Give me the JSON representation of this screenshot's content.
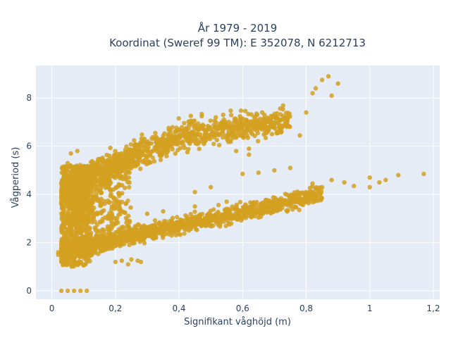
{
  "chart_data": {
    "type": "scatter",
    "title_lines": [
      "År 1979 - 2019",
      "Koordinat (Sweref 99 TM): E 352078, N 6212713"
    ],
    "xlabel": "Signifikant våghöjd (m)",
    "ylabel": "Vågperiod (s)",
    "xlim": [
      -0.05,
      1.22
    ],
    "ylim": [
      -0.35,
      9.35
    ],
    "x_ticks": [
      0,
      0.2,
      0.4,
      0.6,
      0.8,
      1,
      1.2
    ],
    "x_tick_labels": [
      "0",
      "0,2",
      "0,4",
      "0,6",
      "0,8",
      "1",
      "1,2"
    ],
    "y_ticks": [
      0,
      2,
      4,
      6,
      8
    ],
    "y_tick_labels": [
      "0",
      "2",
      "4",
      "6",
      "8"
    ],
    "grid": true,
    "legend": "none",
    "marker_color": "#d4a020",
    "plot_bg": "#e5ecf6",
    "sample_points": [
      [
        0.02,
        1.5
      ],
      [
        0.03,
        1.2
      ],
      [
        0.02,
        1.6
      ],
      [
        0.03,
        1.9
      ],
      [
        0.03,
        0.0
      ],
      [
        0.05,
        0.0
      ],
      [
        0.07,
        0.0
      ],
      [
        0.09,
        0.0
      ],
      [
        0.11,
        0.0
      ],
      [
        1.17,
        4.85
      ],
      [
        1.09,
        4.8
      ],
      [
        1.05,
        4.6
      ],
      [
        1.0,
        4.7
      ],
      [
        1.0,
        4.3
      ],
      [
        1.03,
        4.5
      ],
      [
        0.95,
        4.35
      ],
      [
        0.92,
        4.5
      ],
      [
        0.88,
        4.6
      ],
      [
        0.85,
        4.3
      ],
      [
        0.82,
        4.45
      ],
      [
        0.8,
        4.1
      ],
      [
        0.9,
        8.6
      ],
      [
        0.87,
        8.9
      ],
      [
        0.85,
        8.75
      ],
      [
        0.83,
        8.4
      ],
      [
        0.82,
        8.2
      ],
      [
        0.88,
        8.1
      ],
      [
        0.8,
        7.4
      ],
      [
        0.78,
        6.45
      ],
      [
        0.62,
        5.9
      ],
      [
        0.62,
        5.65
      ],
      [
        0.58,
        5.8
      ],
      [
        0.6,
        6.8
      ],
      [
        0.75,
        5.1
      ],
      [
        0.7,
        5.0
      ],
      [
        0.65,
        4.9
      ],
      [
        0.6,
        4.85
      ],
      [
        0.03,
        2.6
      ],
      [
        0.03,
        3.7
      ],
      [
        0.03,
        3.2
      ],
      [
        0.04,
        4.0
      ],
      [
        0.04,
        4.8
      ],
      [
        0.05,
        5.3
      ],
      [
        0.06,
        5.7
      ],
      [
        0.08,
        5.8
      ],
      [
        0.04,
        4.3
      ],
      [
        0.05,
        4.6
      ],
      [
        0.12,
        3.9
      ],
      [
        0.15,
        3.7
      ],
      [
        0.2,
        1.2
      ],
      [
        0.22,
        1.25
      ],
      [
        0.25,
        1.3
      ],
      [
        0.28,
        1.2
      ],
      [
        0.24,
        1.1
      ],
      [
        0.27,
        1.25
      ],
      [
        0.3,
        3.2
      ],
      [
        0.35,
        3.3
      ],
      [
        0.45,
        3.5
      ],
      [
        0.5,
        4.3
      ],
      [
        0.55,
        3.7
      ],
      [
        0.45,
        4.1
      ]
    ]
  }
}
